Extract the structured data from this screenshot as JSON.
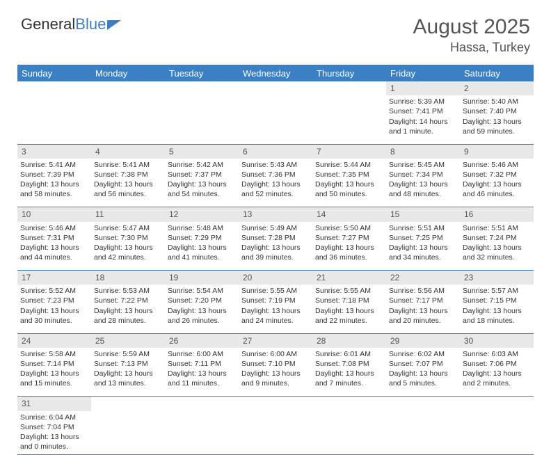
{
  "brand": {
    "name_part1": "General",
    "name_part2": "Blue"
  },
  "title": "August 2025",
  "location": "Hassa, Turkey",
  "colors": {
    "header_bg": "#3b7fc4",
    "header_text": "#ffffff",
    "daynum_bg": "#e8e8e8",
    "cell_border": "#3b7fc4",
    "body_text": "#333333",
    "title_text": "#555555"
  },
  "weekdays": [
    "Sunday",
    "Monday",
    "Tuesday",
    "Wednesday",
    "Thursday",
    "Friday",
    "Saturday"
  ],
  "days": {
    "1": {
      "sunrise": "5:39 AM",
      "sunset": "7:41 PM",
      "daylight": "14 hours and 1 minute."
    },
    "2": {
      "sunrise": "5:40 AM",
      "sunset": "7:40 PM",
      "daylight": "13 hours and 59 minutes."
    },
    "3": {
      "sunrise": "5:41 AM",
      "sunset": "7:39 PM",
      "daylight": "13 hours and 58 minutes."
    },
    "4": {
      "sunrise": "5:41 AM",
      "sunset": "7:38 PM",
      "daylight": "13 hours and 56 minutes."
    },
    "5": {
      "sunrise": "5:42 AM",
      "sunset": "7:37 PM",
      "daylight": "13 hours and 54 minutes."
    },
    "6": {
      "sunrise": "5:43 AM",
      "sunset": "7:36 PM",
      "daylight": "13 hours and 52 minutes."
    },
    "7": {
      "sunrise": "5:44 AM",
      "sunset": "7:35 PM",
      "daylight": "13 hours and 50 minutes."
    },
    "8": {
      "sunrise": "5:45 AM",
      "sunset": "7:34 PM",
      "daylight": "13 hours and 48 minutes."
    },
    "9": {
      "sunrise": "5:46 AM",
      "sunset": "7:32 PM",
      "daylight": "13 hours and 46 minutes."
    },
    "10": {
      "sunrise": "5:46 AM",
      "sunset": "7:31 PM",
      "daylight": "13 hours and 44 minutes."
    },
    "11": {
      "sunrise": "5:47 AM",
      "sunset": "7:30 PM",
      "daylight": "13 hours and 42 minutes."
    },
    "12": {
      "sunrise": "5:48 AM",
      "sunset": "7:29 PM",
      "daylight": "13 hours and 41 minutes."
    },
    "13": {
      "sunrise": "5:49 AM",
      "sunset": "7:28 PM",
      "daylight": "13 hours and 39 minutes."
    },
    "14": {
      "sunrise": "5:50 AM",
      "sunset": "7:27 PM",
      "daylight": "13 hours and 36 minutes."
    },
    "15": {
      "sunrise": "5:51 AM",
      "sunset": "7:25 PM",
      "daylight": "13 hours and 34 minutes."
    },
    "16": {
      "sunrise": "5:51 AM",
      "sunset": "7:24 PM",
      "daylight": "13 hours and 32 minutes."
    },
    "17": {
      "sunrise": "5:52 AM",
      "sunset": "7:23 PM",
      "daylight": "13 hours and 30 minutes."
    },
    "18": {
      "sunrise": "5:53 AM",
      "sunset": "7:22 PM",
      "daylight": "13 hours and 28 minutes."
    },
    "19": {
      "sunrise": "5:54 AM",
      "sunset": "7:20 PM",
      "daylight": "13 hours and 26 minutes."
    },
    "20": {
      "sunrise": "5:55 AM",
      "sunset": "7:19 PM",
      "daylight": "13 hours and 24 minutes."
    },
    "21": {
      "sunrise": "5:55 AM",
      "sunset": "7:18 PM",
      "daylight": "13 hours and 22 minutes."
    },
    "22": {
      "sunrise": "5:56 AM",
      "sunset": "7:17 PM",
      "daylight": "13 hours and 20 minutes."
    },
    "23": {
      "sunrise": "5:57 AM",
      "sunset": "7:15 PM",
      "daylight": "13 hours and 18 minutes."
    },
    "24": {
      "sunrise": "5:58 AM",
      "sunset": "7:14 PM",
      "daylight": "13 hours and 15 minutes."
    },
    "25": {
      "sunrise": "5:59 AM",
      "sunset": "7:13 PM",
      "daylight": "13 hours and 13 minutes."
    },
    "26": {
      "sunrise": "6:00 AM",
      "sunset": "7:11 PM",
      "daylight": "13 hours and 11 minutes."
    },
    "27": {
      "sunrise": "6:00 AM",
      "sunset": "7:10 PM",
      "daylight": "13 hours and 9 minutes."
    },
    "28": {
      "sunrise": "6:01 AM",
      "sunset": "7:08 PM",
      "daylight": "13 hours and 7 minutes."
    },
    "29": {
      "sunrise": "6:02 AM",
      "sunset": "7:07 PM",
      "daylight": "13 hours and 5 minutes."
    },
    "30": {
      "sunrise": "6:03 AM",
      "sunset": "7:06 PM",
      "daylight": "13 hours and 2 minutes."
    },
    "31": {
      "sunrise": "6:04 AM",
      "sunset": "7:04 PM",
      "daylight": "13 hours and 0 minutes."
    }
  },
  "labels": {
    "sunrise": "Sunrise:",
    "sunset": "Sunset:",
    "daylight": "Daylight:"
  },
  "layout": {
    "first_weekday_index": 5,
    "num_days": 31,
    "cols": 7
  }
}
